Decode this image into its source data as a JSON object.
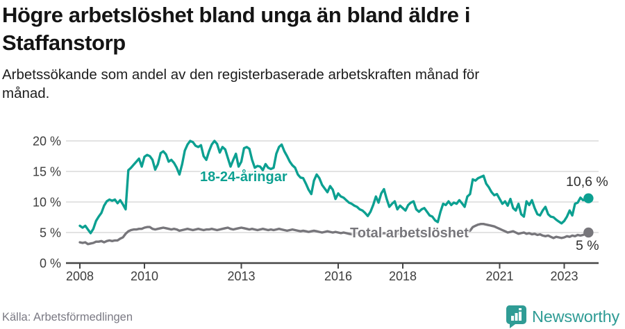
{
  "header": {
    "title": "Högre arbetslöshet bland unga än bland äldre i Staffanstorp",
    "subtitle": "Arbetssökande som andel av den registerbaserade arbetskraften månad för månad."
  },
  "footer": {
    "source": "Källa: Arbetsförmedlingen",
    "brand_name": "Newsworthy"
  },
  "colors": {
    "youth_line": "#0CA091",
    "total_line": "#77767B",
    "gridline": "#DADADA",
    "axis": "#454545",
    "tick_text": "#3D3D3D",
    "brand_teal": "#2F9C95"
  },
  "chart_data": {
    "type": "line",
    "x_start": 2008,
    "points_per_year": 12,
    "x_ticks": [
      {
        "year": 2008,
        "label": "2008"
      },
      {
        "year": 2010,
        "label": "2010"
      },
      {
        "year": 2013,
        "label": "2013"
      },
      {
        "year": 2016,
        "label": "2016"
      },
      {
        "year": 2018,
        "label": "2018"
      },
      {
        "year": 2021,
        "label": "2021"
      },
      {
        "year": 2023,
        "label": "2023"
      }
    ],
    "y_ticks": [
      {
        "value": 0,
        "label": "0 %"
      },
      {
        "value": 5,
        "label": "5 %"
      },
      {
        "value": 10,
        "label": "10 %"
      },
      {
        "value": 15,
        "label": "15 %"
      },
      {
        "value": 20,
        "label": "20 %"
      }
    ],
    "ylim": [
      0,
      21
    ],
    "grid": true,
    "series": [
      {
        "id": "youth",
        "name": "18-24-åringar",
        "color": "#0CA091",
        "end_label": "10,6 %",
        "end_value": 10.6,
        "values": [
          6.1,
          5.8,
          6.1,
          5.5,
          4.9,
          5.6,
          6.9,
          7.6,
          8.2,
          9.4,
          10.1,
          10.4,
          10.2,
          10.4,
          9.8,
          10.3,
          9.6,
          8.8,
          15.2,
          15.6,
          16.1,
          16.6,
          17.1,
          15.8,
          17.4,
          17.7,
          17.5,
          16.9,
          15.3,
          16.2,
          18.0,
          18.3,
          17.8,
          16.6,
          16.9,
          16.4,
          15.6,
          14.5,
          16.2,
          18.4,
          19.4,
          20.0,
          19.8,
          19.2,
          19.0,
          19.3,
          17.5,
          16.9,
          18.3,
          19.4,
          20.0,
          19.5,
          18.1,
          19.0,
          18.6,
          17.2,
          15.8,
          16.9,
          17.9,
          15.8,
          16.6,
          18.8,
          19.0,
          18.7,
          16.9,
          15.6,
          15.9,
          15.8,
          15.2,
          16.2,
          15.6,
          15.4,
          15.6,
          17.9,
          19.0,
          19.4,
          18.3,
          17.5,
          16.6,
          16.0,
          15.6,
          14.5,
          14.0,
          13.9,
          13.0,
          12.0,
          11.3,
          13.5,
          14.5,
          13.9,
          12.8,
          12.2,
          11.6,
          12.6,
          12.0,
          10.5,
          11.4,
          10.9,
          10.7,
          10.3,
          9.9,
          9.7,
          9.4,
          9.2,
          8.8,
          8.6,
          8.2,
          7.7,
          8.4,
          9.5,
          10.9,
          9.9,
          11.4,
          12.1,
          10.5,
          9.2,
          9.7,
          10.1,
          8.8,
          9.4,
          9.0,
          8.6,
          9.5,
          9.9,
          10.1,
          8.8,
          8.4,
          8.8,
          9.0,
          8.4,
          7.8,
          7.6,
          7.0,
          6.7,
          8.4,
          9.7,
          9.5,
          10.1,
          9.5,
          9.9,
          9.7,
          10.3,
          9.8,
          9.2,
          10.9,
          11.3,
          13.7,
          13.5,
          13.9,
          14.1,
          14.3,
          13.0,
          12.4,
          11.6,
          11.1,
          11.3,
          10.5,
          9.7,
          10.1,
          9.4,
          10.5,
          9.0,
          8.6,
          9.7,
          8.0,
          7.6,
          10.1,
          9.5,
          10.3,
          9.0,
          8.0,
          7.8,
          8.6,
          9.2,
          8.0,
          7.6,
          7.5,
          7.1,
          6.8,
          6.5,
          6.9,
          7.6,
          8.6,
          7.8,
          9.7,
          9.9,
          10.7,
          10.3,
          10.4,
          10.6
        ]
      },
      {
        "id": "total",
        "name": "Total arbetslöshet",
        "color": "#77767B",
        "end_label": "5 %",
        "end_value": 5.0,
        "values": [
          3.4,
          3.3,
          3.4,
          3.1,
          3.2,
          3.3,
          3.5,
          3.5,
          3.6,
          3.4,
          3.6,
          3.7,
          3.6,
          3.7,
          3.7,
          4.0,
          4.2,
          4.8,
          5.2,
          5.4,
          5.5,
          5.5,
          5.6,
          5.6,
          5.8,
          5.9,
          5.9,
          5.6,
          5.5,
          5.6,
          5.7,
          5.8,
          5.7,
          5.6,
          5.5,
          5.6,
          5.5,
          5.3,
          5.4,
          5.5,
          5.6,
          5.5,
          5.4,
          5.5,
          5.6,
          5.5,
          5.4,
          5.5,
          5.5,
          5.6,
          5.5,
          5.4,
          5.5,
          5.6,
          5.7,
          5.8,
          5.6,
          5.5,
          5.6,
          5.7,
          5.8,
          5.7,
          5.6,
          5.5,
          5.6,
          5.5,
          5.4,
          5.5,
          5.6,
          5.5,
          5.4,
          5.5,
          5.4,
          5.5,
          5.6,
          5.5,
          5.4,
          5.3,
          5.4,
          5.5,
          5.4,
          5.3,
          5.2,
          5.3,
          5.2,
          5.1,
          5.2,
          5.3,
          5.2,
          5.1,
          5.0,
          5.1,
          5.2,
          5.1,
          5.0,
          5.1,
          5.0,
          4.9,
          5.0,
          4.9,
          4.8,
          4.7,
          4.8,
          4.9,
          4.8,
          4.7,
          4.6,
          4.7,
          4.6,
          4.7,
          4.8,
          4.7,
          4.8,
          4.9,
          4.8,
          4.7,
          4.8,
          4.9,
          4.8,
          4.9,
          4.8,
          4.7,
          4.8,
          4.7,
          4.6,
          4.5,
          4.6,
          4.7,
          4.6,
          4.5,
          4.4,
          4.5,
          4.4,
          4.5,
          4.6,
          4.5,
          4.6,
          4.7,
          4.8,
          4.9,
          4.8,
          4.9,
          5.0,
          5.1,
          5.2,
          5.3,
          5.9,
          6.1,
          6.3,
          6.4,
          6.4,
          6.3,
          6.2,
          6.1,
          6.0,
          5.8,
          5.6,
          5.4,
          5.2,
          5.0,
          5.1,
          5.2,
          5.0,
          4.8,
          4.9,
          5.0,
          4.8,
          4.9,
          4.7,
          4.8,
          4.6,
          4.7,
          4.5,
          4.4,
          4.5,
          4.3,
          4.1,
          4.3,
          4.2,
          4.1,
          4.2,
          4.4,
          4.3,
          4.5,
          4.4,
          4.6,
          4.5,
          4.6,
          4.8,
          5.0
        ]
      }
    ]
  }
}
